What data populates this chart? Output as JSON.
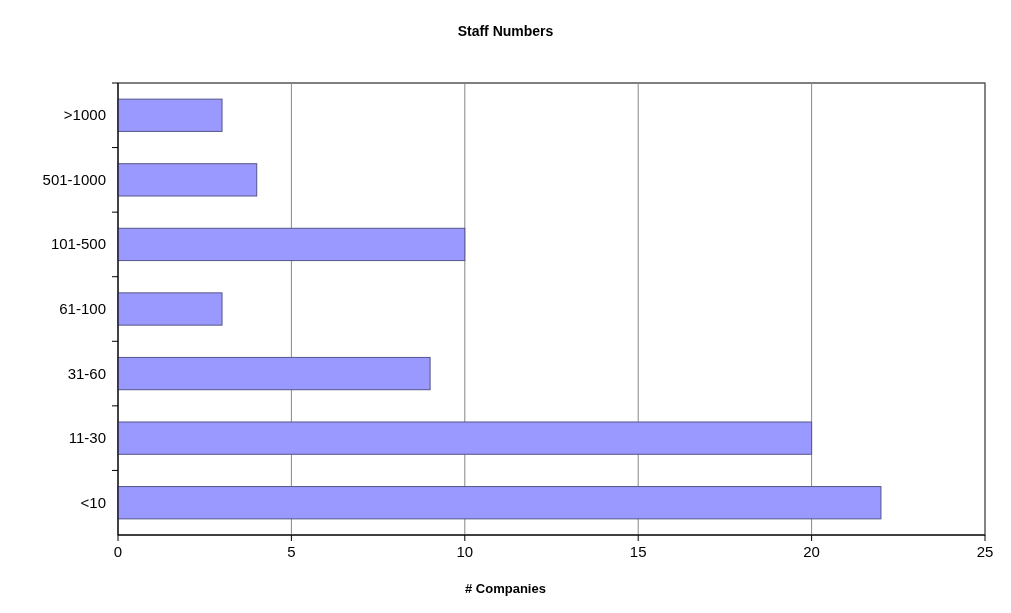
{
  "chart_data": {
    "type": "bar",
    "orientation": "horizontal",
    "title": "Staff Numbers",
    "xlabel": "# Companies",
    "categories": [
      ">1000",
      "501-1000",
      "101-500",
      "61-100",
      "31-60",
      "11-30",
      "<10"
    ],
    "values": [
      3,
      4,
      10,
      3,
      9,
      20,
      22
    ],
    "color": "#9999ff",
    "xlim": [
      0,
      25
    ],
    "xticks": [
      0,
      5,
      10,
      15,
      20,
      25
    ],
    "grid": "x"
  }
}
